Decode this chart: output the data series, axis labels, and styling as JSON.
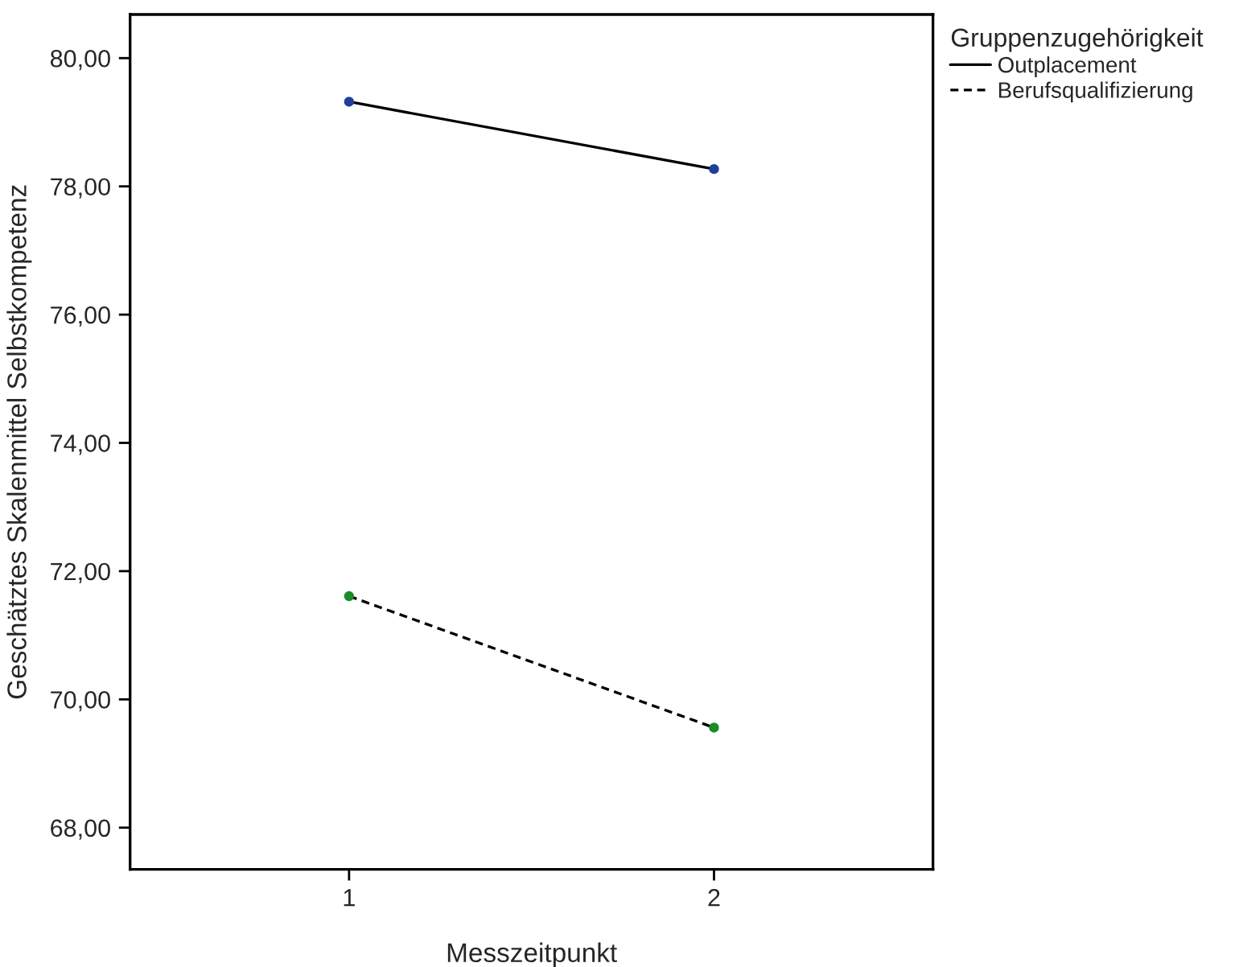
{
  "chart_data": {
    "type": "line",
    "xlabel": "Messzeitpunkt",
    "ylabel": "Geschätztes Skalenmittel Selbstkompetenz",
    "legend_title": "Gruppenzugehörigkeit",
    "categories": [
      "1",
      "2"
    ],
    "series": [
      {
        "name": "Outplacement",
        "color": "#000000",
        "colors": [
          "#1f3f99",
          "#1f3f99"
        ],
        "line_style": "solid",
        "values": [
          79.32,
          78.27
        ]
      },
      {
        "name": "Berufsqualifizierung",
        "color": "#000000",
        "colors": [
          "#1a8c2a",
          "#1a8c2a"
        ],
        "line_style": "dashed",
        "values": [
          71.61,
          69.56
        ]
      }
    ],
    "ylim": [
      67.35,
      80.68
    ],
    "yticks": [
      {
        "value": 68,
        "label": "68,00"
      },
      {
        "value": 70,
        "label": "70,00"
      },
      {
        "value": 72,
        "label": "72,00"
      },
      {
        "value": 74,
        "label": "74,00"
      },
      {
        "value": 76,
        "label": "76,00"
      },
      {
        "value": 78,
        "label": "78,00"
      },
      {
        "value": 80,
        "label": "80,00"
      }
    ],
    "marker": "circle",
    "grid": false,
    "legend": "top right"
  }
}
